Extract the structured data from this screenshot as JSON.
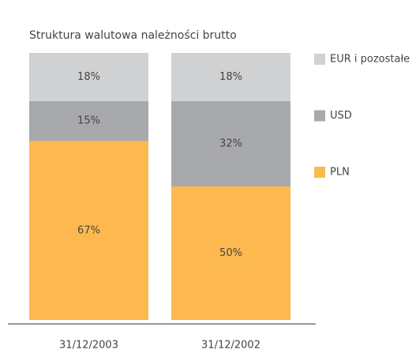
{
  "chart_data": {
    "type": "stacked_bar",
    "title": "Struktura walutowa należności brutto",
    "categories": [
      "31/12/2003",
      "31/12/2002"
    ],
    "series": [
      {
        "name": "PLN",
        "color": "#fdb94f",
        "values": [
          67,
          50
        ],
        "value_labels": [
          "67%",
          "50%"
        ]
      },
      {
        "name": "USD",
        "color": "#a7a9ac",
        "values": [
          15,
          32
        ],
        "value_labels": [
          "15%",
          "32%"
        ]
      },
      {
        "name": "EUR i pozostałe",
        "color": "#d0d1d3",
        "values": [
          18,
          18
        ],
        "value_labels": [
          "18%",
          "18%"
        ]
      }
    ]
  }
}
